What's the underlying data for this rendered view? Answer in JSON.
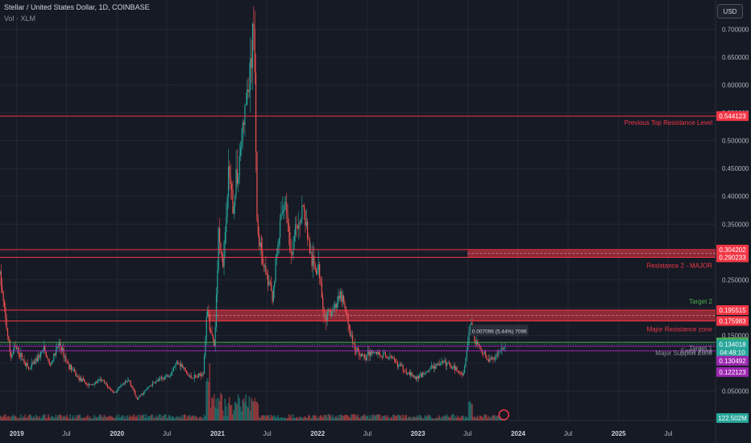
{
  "header": {
    "title": "Stellar / United States Dollar, 1D, COINBASE",
    "subtitle": "Vol · XLM",
    "currency_button": "USD"
  },
  "colors": {
    "background": "#161a25",
    "up": "#26a69a",
    "down": "#ef5350",
    "resistance": "#f23645",
    "target": "#4caf50",
    "support": "#9c27b0"
  },
  "chart_data": {
    "type": "candlestick",
    "title": "Stellar / United States Dollar, 1D, COINBASE",
    "xlabel": "",
    "ylabel": "",
    "ylim": [
      0.02,
      0.74
    ],
    "xlim": [
      "2018-11-01",
      "2025-12-20"
    ],
    "grid": true,
    "y_ticks": [
      "0.700000",
      "0.650000",
      "0.600000",
      "0.550000",
      "0.500000",
      "0.450000",
      "0.400000",
      "0.350000",
      "0.300000",
      "0.250000",
      "0.200000",
      "0.150000",
      "0.100000",
      "0.050000"
    ],
    "y_tick_values": [
      0.7,
      0.65,
      0.6,
      0.55,
      0.5,
      0.45,
      0.4,
      0.35,
      0.3,
      0.25,
      0.2,
      0.15,
      0.1,
      0.05
    ],
    "x_ticks": [
      {
        "label": "2019",
        "date": "2019-01-01",
        "bold": true
      },
      {
        "label": "Jul",
        "date": "2019-07-01",
        "bold": false
      },
      {
        "label": "2020",
        "date": "2020-01-01",
        "bold": true
      },
      {
        "label": "Jul",
        "date": "2020-07-01",
        "bold": false
      },
      {
        "label": "2021",
        "date": "2021-01-01",
        "bold": true
      },
      {
        "label": "Jul",
        "date": "2021-07-01",
        "bold": false
      },
      {
        "label": "2022",
        "date": "2022-01-01",
        "bold": true
      },
      {
        "label": "Jul",
        "date": "2022-07-01",
        "bold": false
      },
      {
        "label": "2023",
        "date": "2023-01-01",
        "bold": true
      },
      {
        "label": "Jul",
        "date": "2023-07-01",
        "bold": false
      },
      {
        "label": "2024",
        "date": "2024-01-01",
        "bold": true
      },
      {
        "label": "Jul",
        "date": "2024-07-01",
        "bold": false
      },
      {
        "label": "2025",
        "date": "2025-01-01",
        "bold": true
      },
      {
        "label": "Jul",
        "date": "2025-07-01",
        "bold": false
      }
    ],
    "price_path": [
      [
        "2018-11-01",
        0.26
      ],
      [
        "2018-11-15",
        0.2
      ],
      [
        "2018-12-10",
        0.11
      ],
      [
        "2018-12-25",
        0.13
      ],
      [
        "2019-01-20",
        0.11
      ],
      [
        "2019-02-15",
        0.088
      ],
      [
        "2019-04-10",
        0.125
      ],
      [
        "2019-05-01",
        0.095
      ],
      [
        "2019-06-05",
        0.135
      ],
      [
        "2019-07-05",
        0.1
      ],
      [
        "2019-08-10",
        0.075
      ],
      [
        "2019-09-20",
        0.06
      ],
      [
        "2019-11-05",
        0.07
      ],
      [
        "2019-12-20",
        0.047
      ],
      [
        "2020-02-15",
        0.07
      ],
      [
        "2020-03-13",
        0.035
      ],
      [
        "2020-05-01",
        0.06
      ],
      [
        "2020-06-01",
        0.07
      ],
      [
        "2020-07-10",
        0.08
      ],
      [
        "2020-08-10",
        0.105
      ],
      [
        "2020-09-20",
        0.075
      ],
      [
        "2020-10-20",
        0.075
      ],
      [
        "2020-11-10",
        0.085
      ],
      [
        "2020-11-25",
        0.2
      ],
      [
        "2020-12-05",
        0.16
      ],
      [
        "2020-12-22",
        0.13
      ],
      [
        "2021-01-06",
        0.35
      ],
      [
        "2021-01-20",
        0.27
      ],
      [
        "2021-02-10",
        0.43
      ],
      [
        "2021-02-28",
        0.38
      ],
      [
        "2021-04-10",
        0.55
      ],
      [
        "2021-05-01",
        0.62
      ],
      [
        "2021-05-15",
        0.72
      ],
      [
        "2021-05-25",
        0.35
      ],
      [
        "2021-06-25",
        0.26
      ],
      [
        "2021-07-20",
        0.22
      ],
      [
        "2021-08-20",
        0.36
      ],
      [
        "2021-09-06",
        0.4
      ],
      [
        "2021-09-25",
        0.28
      ],
      [
        "2021-10-15",
        0.35
      ],
      [
        "2021-11-10",
        0.38
      ],
      [
        "2021-12-10",
        0.28
      ],
      [
        "2022-01-10",
        0.26
      ],
      [
        "2022-01-25",
        0.18
      ],
      [
        "2022-03-30",
        0.22
      ],
      [
        "2022-05-12",
        0.13
      ],
      [
        "2022-06-18",
        0.11
      ],
      [
        "2022-07-20",
        0.12
      ],
      [
        "2022-08-20",
        0.115
      ],
      [
        "2022-09-20",
        0.11
      ],
      [
        "2022-11-09",
        0.09
      ],
      [
        "2022-12-25",
        0.072
      ],
      [
        "2023-02-15",
        0.09
      ],
      [
        "2023-03-20",
        0.1
      ],
      [
        "2023-04-20",
        0.1
      ],
      [
        "2023-06-15",
        0.08
      ],
      [
        "2023-07-13",
        0.18
      ],
      [
        "2023-07-25",
        0.14
      ],
      [
        "2023-08-25",
        0.12
      ],
      [
        "2023-09-15",
        0.105
      ],
      [
        "2023-10-10",
        0.11
      ],
      [
        "2023-11-01",
        0.125
      ],
      [
        "2023-11-16",
        0.131
      ]
    ],
    "volume_y_label": "122.502M",
    "levels": [
      {
        "name": "Previous Top Resistance Level",
        "label": "Previous Top Resistance Level",
        "value": 0.544123,
        "tag": "0.544123",
        "color": "#f23645",
        "kind": "line"
      },
      {
        "name": "Resistance 2 - MAJOR",
        "label": "Resistance 2 - MAJOR",
        "value_top": 0.304202,
        "value_bottom": 0.290233,
        "tag_top": "0.304202",
        "tag_bottom": "0.290233",
        "color": "#f23645",
        "kind": "zone",
        "zone_start": "2023-07-01"
      },
      {
        "name": "Major Resistance zone",
        "label": "Major Resistance zone",
        "value_top": 0.195515,
        "value_bottom": 0.175983,
        "tag_top": "0.195515",
        "tag_bottom": "0.175983",
        "color": "#f23645",
        "kind": "zone",
        "zone_start": "2020-12-01"
      },
      {
        "name": "Target 2",
        "label": "Target 2",
        "value": 0.195515,
        "color": "#4caf50",
        "kind": "label-only"
      },
      {
        "name": "Target 1",
        "label": "Target 1",
        "value": 0.13745,
        "tag": "0.137450",
        "color": "#4caf50",
        "kind": "line"
      },
      {
        "name": "Entry Zone",
        "label": "Entry Zone",
        "value": 0.134018,
        "tag": "0.134018",
        "color": "#26a69a",
        "kind": "current"
      },
      {
        "name": "Major Support Zone",
        "label": "Major Support Zone",
        "value_top": 0.130492,
        "value_bottom": 0.122123,
        "tag_top": "0.130492",
        "tag_bottom": "0.122123",
        "color": "#9c27b0",
        "kind": "lines"
      }
    ],
    "countdown": "04:48:10",
    "annotation": {
      "text": "0.007096 (5.44%) 7096",
      "date": "2023-07-20",
      "value": 0.156
    }
  }
}
